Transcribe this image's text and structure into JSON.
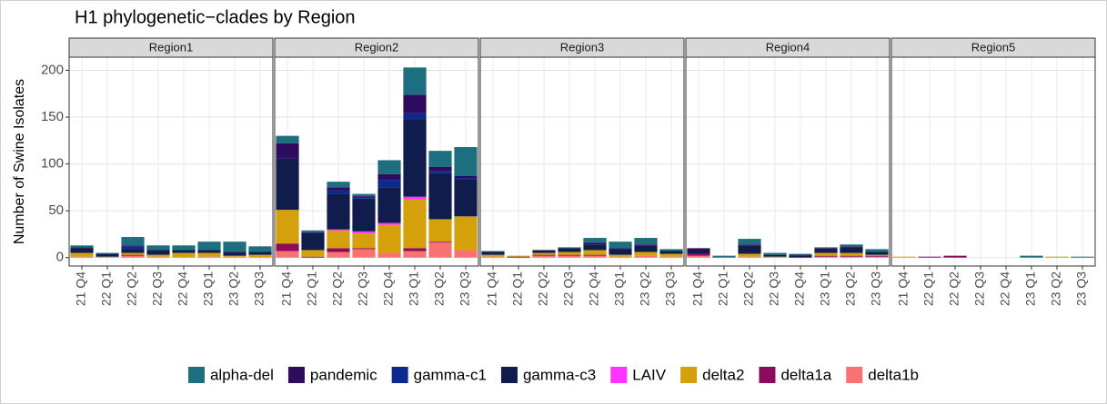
{
  "title": "H1 phylogenetic−clades by Region",
  "ylabel": "Number of Swine Isolates",
  "chart_data": [
    {
      "type": "bar",
      "stacked": true,
      "title": "Region1",
      "categories": [
        "21 Q4",
        "22 Q1",
        "22 Q2",
        "22 Q3",
        "22 Q4",
        "23 Q1",
        "23 Q2",
        "23 Q3"
      ],
      "ylim": [
        -9,
        214
      ],
      "yticks": [
        0,
        50,
        100,
        150,
        200
      ],
      "grid": true,
      "series": [
        {
          "name": "alpha-del",
          "color": "#1d6e7f",
          "values": [
            2,
            1,
            9,
            5,
            5,
            9,
            11,
            6
          ]
        },
        {
          "name": "pandemic",
          "color": "#2e0b5e",
          "values": [
            1,
            0,
            1,
            1,
            0,
            1,
            1,
            0
          ]
        },
        {
          "name": "gamma-c1",
          "color": "#0c2a8e",
          "values": [
            0,
            0,
            3,
            0,
            0,
            0,
            0,
            0
          ]
        },
        {
          "name": "gamma-c3",
          "color": "#101c4b",
          "values": [
            5,
            3,
            4,
            4,
            3,
            2,
            3,
            3
          ]
        },
        {
          "name": "LAIV",
          "color": "#ff33ff",
          "values": [
            0,
            0,
            0,
            0,
            0,
            0,
            0,
            0
          ]
        },
        {
          "name": "delta2",
          "color": "#d4a00b",
          "values": [
            4,
            1,
            2,
            2,
            5,
            4,
            1,
            3
          ]
        },
        {
          "name": "delta1a",
          "color": "#8c0b5c",
          "values": [
            0,
            0,
            1,
            0,
            0,
            0,
            0,
            0
          ]
        },
        {
          "name": "delta1b",
          "color": "#f87272",
          "values": [
            1,
            0,
            2,
            1,
            0,
            1,
            1,
            0
          ]
        }
      ]
    },
    {
      "type": "bar",
      "stacked": true,
      "title": "Region2",
      "categories": [
        "21 Q4",
        "22 Q1",
        "22 Q2",
        "22 Q3",
        "22 Q4",
        "23 Q1",
        "23 Q2",
        "23 Q3"
      ],
      "ylim": [
        -9,
        214
      ],
      "yticks": [
        0,
        50,
        100,
        150,
        200
      ],
      "grid": true,
      "series": [
        {
          "name": "alpha-del",
          "color": "#1d6e7f",
          "values": [
            8,
            2,
            6,
            2,
            15,
            29,
            17,
            31
          ]
        },
        {
          "name": "pandemic",
          "color": "#2e0b5e",
          "values": [
            16,
            1,
            3,
            1,
            6,
            20,
            5,
            2
          ]
        },
        {
          "name": "gamma-c1",
          "color": "#0c2a8e",
          "values": [
            0,
            0,
            4,
            2,
            8,
            6,
            2,
            1
          ]
        },
        {
          "name": "gamma-c3",
          "color": "#101c4b",
          "values": [
            55,
            18,
            38,
            35,
            38,
            83,
            49,
            40
          ]
        },
        {
          "name": "LAIV",
          "color": "#ff33ff",
          "values": [
            0,
            0,
            1,
            2,
            2,
            3,
            0,
            0
          ]
        },
        {
          "name": "delta2",
          "color": "#d4a00b",
          "values": [
            36,
            7,
            19,
            16,
            30,
            52,
            24,
            36
          ]
        },
        {
          "name": "delta1a",
          "color": "#8c0b5c",
          "values": [
            8,
            1,
            4,
            1,
            0,
            3,
            1,
            0
          ]
        },
        {
          "name": "delta1b",
          "color": "#f87272",
          "values": [
            7,
            0,
            6,
            9,
            5,
            7,
            16,
            8
          ]
        }
      ]
    },
    {
      "type": "bar",
      "stacked": true,
      "title": "Region3",
      "categories": [
        "21 Q4",
        "22 Q1",
        "22 Q2",
        "22 Q3",
        "22 Q4",
        "23 Q1",
        "23 Q2",
        "23 Q3"
      ],
      "ylim": [
        -9,
        214
      ],
      "yticks": [
        0,
        50,
        100,
        150,
        200
      ],
      "grid": true,
      "series": [
        {
          "name": "alpha-del",
          "color": "#1d6e7f",
          "values": [
            1,
            0,
            0,
            1,
            5,
            7,
            7,
            2
          ]
        },
        {
          "name": "pandemic",
          "color": "#2e0b5e",
          "values": [
            0,
            0,
            0,
            0,
            2,
            1,
            1,
            0
          ]
        },
        {
          "name": "gamma-c1",
          "color": "#0c2a8e",
          "values": [
            0,
            0,
            0,
            0,
            0,
            0,
            0,
            0
          ]
        },
        {
          "name": "gamma-c3",
          "color": "#101c4b",
          "values": [
            3,
            0,
            3,
            4,
            6,
            6,
            7,
            3
          ]
        },
        {
          "name": "LAIV",
          "color": "#ff33ff",
          "values": [
            0,
            0,
            0,
            0,
            0,
            0,
            0,
            0
          ]
        },
        {
          "name": "delta2",
          "color": "#d4a00b",
          "values": [
            2,
            1,
            2,
            3,
            5,
            2,
            4,
            3
          ]
        },
        {
          "name": "delta1a",
          "color": "#8c0b5c",
          "values": [
            0,
            1,
            1,
            1,
            1,
            0,
            0,
            0
          ]
        },
        {
          "name": "delta1b",
          "color": "#f87272",
          "values": [
            1,
            0,
            2,
            2,
            2,
            1,
            2,
            1
          ]
        }
      ]
    },
    {
      "type": "bar",
      "stacked": true,
      "title": "Region4",
      "categories": [
        "21 Q4",
        "22 Q1",
        "22 Q2",
        "22 Q3",
        "22 Q4",
        "23 Q1",
        "23 Q2",
        "23 Q3"
      ],
      "ylim": [
        -9,
        214
      ],
      "yticks": [
        0,
        50,
        100,
        150,
        200
      ],
      "grid": true,
      "series": [
        {
          "name": "alpha-del",
          "color": "#1d6e7f",
          "values": [
            0,
            2,
            6,
            2,
            1,
            1,
            2,
            3
          ]
        },
        {
          "name": "pandemic",
          "color": "#2e0b5e",
          "values": [
            3,
            0,
            1,
            0,
            1,
            2,
            1,
            0
          ]
        },
        {
          "name": "gamma-c1",
          "color": "#0c2a8e",
          "values": [
            0,
            0,
            0,
            0,
            0,
            0,
            0,
            0
          ]
        },
        {
          "name": "gamma-c3",
          "color": "#101c4b",
          "values": [
            3,
            0,
            9,
            2,
            2,
            3,
            6,
            3
          ]
        },
        {
          "name": "LAIV",
          "color": "#ff33ff",
          "values": [
            0,
            0,
            0,
            0,
            0,
            0,
            0,
            0
          ]
        },
        {
          "name": "delta2",
          "color": "#d4a00b",
          "values": [
            0,
            0,
            3,
            1,
            0,
            3,
            3,
            1
          ]
        },
        {
          "name": "delta1a",
          "color": "#8c0b5c",
          "values": [
            2,
            0,
            0,
            0,
            0,
            1,
            1,
            1
          ]
        },
        {
          "name": "delta1b",
          "color": "#f87272",
          "values": [
            2,
            0,
            1,
            0,
            0,
            1,
            1,
            1
          ]
        }
      ]
    },
    {
      "type": "bar",
      "stacked": true,
      "title": "Region5",
      "categories": [
        "21 Q4",
        "22 Q1",
        "22 Q2",
        "22 Q3",
        "22 Q4",
        "23 Q1",
        "23 Q2",
        "23 Q3"
      ],
      "ylim": [
        -9,
        214
      ],
      "yticks": [
        0,
        50,
        100,
        150,
        200
      ],
      "grid": true,
      "series": [
        {
          "name": "alpha-del",
          "color": "#1d6e7f",
          "values": [
            0,
            0,
            0,
            0,
            0,
            2,
            0,
            1
          ]
        },
        {
          "name": "pandemic",
          "color": "#2e0b5e",
          "values": [
            0,
            0,
            0,
            0,
            0,
            0,
            0,
            0
          ]
        },
        {
          "name": "gamma-c1",
          "color": "#0c2a8e",
          "values": [
            0,
            0,
            0,
            0,
            0,
            0,
            0,
            0
          ]
        },
        {
          "name": "gamma-c3",
          "color": "#101c4b",
          "values": [
            0,
            0,
            0,
            0,
            0,
            0,
            0,
            0
          ]
        },
        {
          "name": "LAIV",
          "color": "#ff33ff",
          "values": [
            0,
            0,
            0,
            0,
            0,
            0,
            0,
            0
          ]
        },
        {
          "name": "delta2",
          "color": "#d4a00b",
          "values": [
            1,
            0,
            0,
            0,
            0,
            0,
            1,
            0
          ]
        },
        {
          "name": "delta1a",
          "color": "#8c0b5c",
          "values": [
            0,
            1,
            2,
            0,
            0,
            0,
            0,
            0
          ]
        },
        {
          "name": "delta1b",
          "color": "#f87272",
          "values": [
            0,
            0,
            0,
            0,
            0,
            0,
            0,
            0
          ]
        }
      ]
    }
  ]
}
